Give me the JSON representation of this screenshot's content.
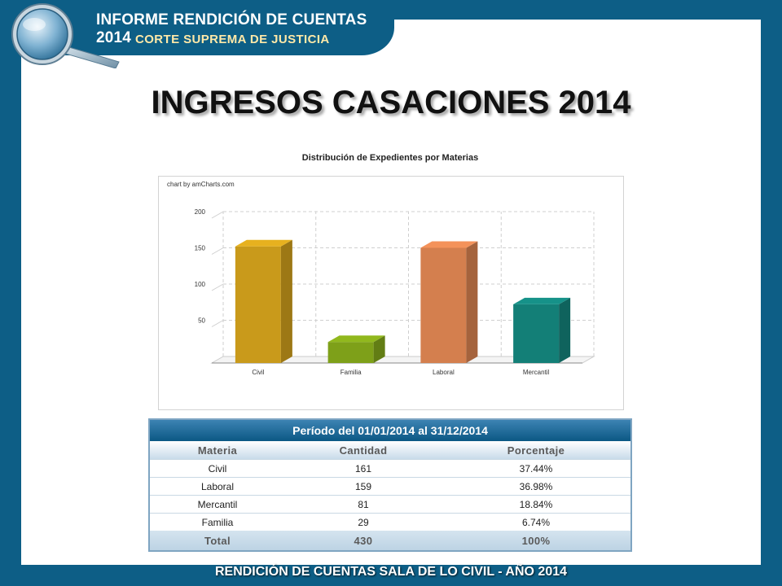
{
  "header": {
    "line1": "INFORME RENDICIÓN DE CUENTAS 2014",
    "line2": "CORTE SUPREMA DE JUSTICIA",
    "logo_icon": "magnifying-glass-icon"
  },
  "slide": {
    "title": "INGRESOS CASACIONES 2014"
  },
  "chart_data": {
    "type": "bar",
    "title": "Distribución de Expedientes por Materias",
    "credit": "chart by amCharts.com",
    "categories": [
      "Civil",
      "Familia",
      "Laboral",
      "Mercantil"
    ],
    "values": [
      161,
      29,
      159,
      81
    ],
    "colors": [
      "#c99a1b",
      "#7ea019",
      "#d47f4e",
      "#137f77"
    ],
    "yticks": [
      "50",
      "100",
      "150",
      "200"
    ],
    "ylim": [
      0,
      200
    ],
    "grid": true,
    "xlabel": "",
    "ylabel": ""
  },
  "table": {
    "period": "Período del 01/01/2014 al 31/12/2014",
    "headers": [
      "Materia",
      "Cantidad",
      "Porcentaje"
    ],
    "rows": [
      [
        "Civil",
        "161",
        "37.44%"
      ],
      [
        "Laboral",
        "159",
        "36.98%"
      ],
      [
        "Mercantil",
        "81",
        "18.84%"
      ],
      [
        "Familia",
        "29",
        "6.74%"
      ]
    ],
    "total": [
      "Total",
      "430",
      "100%"
    ]
  },
  "footer": {
    "text": "RENDICIÓN DE CUENTAS SALA DE LO CIVIL - AÑO 2014"
  }
}
